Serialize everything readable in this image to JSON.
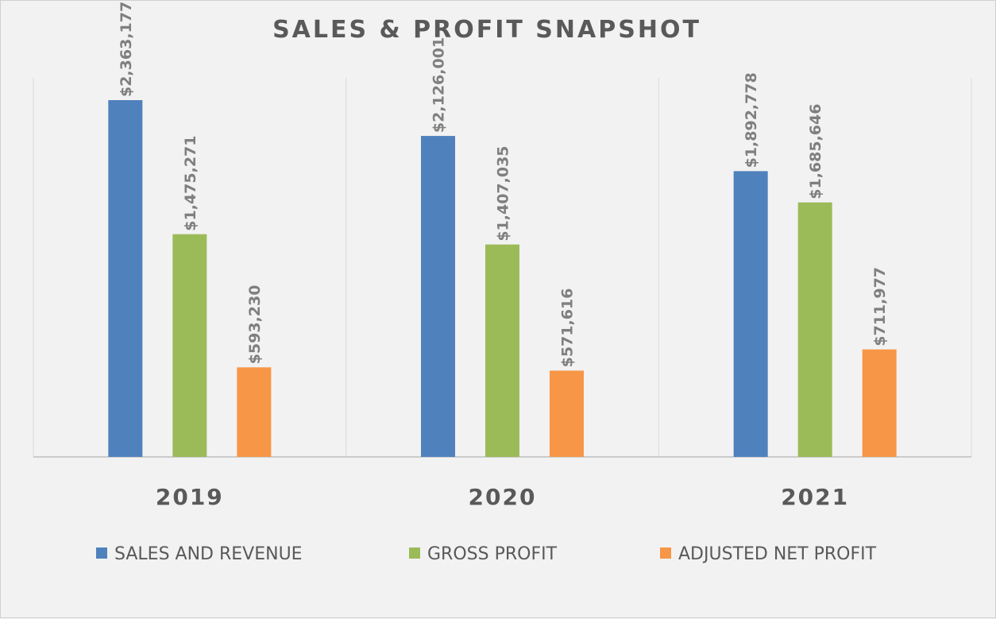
{
  "chart_data": {
    "type": "bar",
    "title": "SALES & PROFIT SNAPSHOT",
    "categories": [
      "2019",
      "2020",
      "2021"
    ],
    "series": [
      {
        "name": "SALES AND REVENUE",
        "values": [
          2363177,
          2126001,
          1892778
        ],
        "labels": [
          "$2,363,177",
          "$2,126,001",
          "$1,892,778"
        ],
        "color": "#4f81bd"
      },
      {
        "name": "GROSS PROFIT",
        "values": [
          1475271,
          1407035,
          1685646
        ],
        "labels": [
          "$1,475,271",
          "$1,407,035",
          "$1,685,646"
        ],
        "color": "#9bbb59"
      },
      {
        "name": "ADJUSTED NET PROFIT",
        "values": [
          593230,
          571616,
          711977
        ],
        "labels": [
          "$593,230",
          "$571,616",
          "$711,977"
        ],
        "color": "#f79646"
      }
    ],
    "ylim": [
      0,
      2363177
    ],
    "grid": "vertical category separators",
    "legend_position": "bottom"
  }
}
